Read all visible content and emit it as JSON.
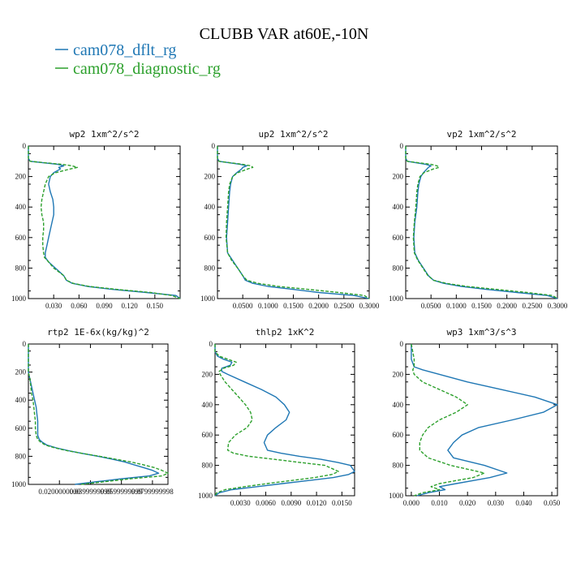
{
  "title": "CLUBB VAR at60E,-10N",
  "legend": [
    {
      "label": "cam078_dflt_rg",
      "color": "#1f77b4"
    },
    {
      "label": "cam078_diagnostic_rg",
      "color": "#2ca02c"
    }
  ],
  "chart_data": [
    {
      "type": "line",
      "title": "wp2  1xm^2/s^2",
      "xlim": [
        0,
        0.18
      ],
      "ylim": [
        1000,
        0
      ],
      "xticks": [
        0.03,
        0.06,
        0.09,
        0.12,
        0.15
      ],
      "xtick_labels": [
        "0.030",
        "0.060",
        "0.090",
        "0.120",
        "0.150"
      ],
      "yticks": [
        0,
        200,
        400,
        600,
        800,
        1000
      ],
      "ytick_labels": [
        "0",
        "200",
        "400",
        "600",
        "800",
        "1000"
      ],
      "y": [
        0,
        80,
        100,
        120,
        130,
        140,
        150,
        175,
        200,
        250,
        300,
        350,
        400,
        450,
        500,
        550,
        600,
        650,
        700,
        730,
        760,
        800,
        850,
        880,
        900,
        920,
        940,
        960,
        980,
        1000
      ],
      "series": [
        {
          "name": "cam078_dflt_rg",
          "color": "#1f77b4",
          "dash": "",
          "x": [
            0,
            0,
            0.002,
            0.035,
            0.042,
            0.036,
            0.038,
            0.03,
            0.026,
            0.024,
            0.026,
            0.029,
            0.03,
            0.03,
            0.028,
            0.026,
            0.024,
            0.022,
            0.02,
            0.02,
            0.024,
            0.032,
            0.042,
            0.045,
            0.052,
            0.07,
            0.1,
            0.14,
            0.175,
            0.18
          ]
        },
        {
          "name": "cam078_diagnostic_rg",
          "color": "#2ca02c",
          "dash": "4,2",
          "x": [
            0,
            0,
            0.002,
            0.04,
            0.052,
            0.058,
            0.05,
            0.032,
            0.024,
            0.02,
            0.018,
            0.016,
            0.015,
            0.016,
            0.018,
            0.018,
            0.017,
            0.017,
            0.018,
            0.019,
            0.024,
            0.03,
            0.042,
            0.045,
            0.053,
            0.072,
            0.105,
            0.145,
            0.17,
            0.18
          ]
        }
      ]
    },
    {
      "type": "line",
      "title": "up2  1xm^2/s^2",
      "xlim": [
        0,
        0.3
      ],
      "ylim": [
        1000,
        0
      ],
      "xticks": [
        0.05,
        0.1,
        0.15,
        0.2,
        0.25,
        0.3
      ],
      "xtick_labels": [
        "0.0500",
        "0.1000",
        "0.1500",
        "0.2000",
        "0.2500",
        "0.3000"
      ],
      "yticks": [
        0,
        200,
        400,
        600,
        800,
        1000
      ],
      "ytick_labels": [
        "0",
        "200",
        "400",
        "600",
        "800",
        "1000"
      ],
      "y": [
        0,
        80,
        100,
        120,
        130,
        140,
        150,
        175,
        200,
        250,
        300,
        400,
        500,
        600,
        700,
        750,
        800,
        850,
        880,
        900,
        920,
        940,
        960,
        980,
        1000
      ],
      "series": [
        {
          "name": "cam078_dflt_rg",
          "color": "#1f77b4",
          "dash": "",
          "x": [
            0,
            0,
            0.003,
            0.045,
            0.058,
            0.05,
            0.048,
            0.038,
            0.03,
            0.026,
            0.024,
            0.022,
            0.02,
            0.018,
            0.02,
            0.03,
            0.04,
            0.05,
            0.055,
            0.07,
            0.1,
            0.15,
            0.2,
            0.27,
            0.3
          ]
        },
        {
          "name": "cam078_diagnostic_rg",
          "color": "#2ca02c",
          "dash": "4,2",
          "x": [
            0,
            0,
            0.003,
            0.05,
            0.066,
            0.07,
            0.06,
            0.04,
            0.03,
            0.024,
            0.022,
            0.02,
            0.018,
            0.017,
            0.02,
            0.028,
            0.04,
            0.05,
            0.058,
            0.08,
            0.12,
            0.18,
            0.24,
            0.29,
            0.3
          ]
        }
      ]
    },
    {
      "type": "line",
      "title": "vp2  1xm^2/s^2",
      "xlim": [
        0,
        0.3
      ],
      "ylim": [
        1000,
        0
      ],
      "xticks": [
        0.05,
        0.1,
        0.15,
        0.2,
        0.25,
        0.3
      ],
      "xtick_labels": [
        "0.0500",
        "0.1000",
        "0.1500",
        "0.2000",
        "0.2500",
        "0.3000"
      ],
      "yticks": [
        0,
        200,
        400,
        600,
        800,
        1000
      ],
      "ytick_labels": [
        "0",
        "200",
        "400",
        "600",
        "800",
        "1000"
      ],
      "y": [
        0,
        80,
        100,
        120,
        130,
        140,
        150,
        175,
        200,
        250,
        300,
        400,
        500,
        600,
        700,
        750,
        800,
        850,
        880,
        900,
        920,
        940,
        960,
        980,
        1000
      ],
      "series": [
        {
          "name": "cam078_dflt_rg",
          "color": "#1f77b4",
          "dash": "",
          "x": [
            0,
            0,
            0.003,
            0.04,
            0.05,
            0.045,
            0.042,
            0.035,
            0.03,
            0.026,
            0.024,
            0.022,
            0.018,
            0.016,
            0.018,
            0.025,
            0.035,
            0.045,
            0.055,
            0.075,
            0.11,
            0.16,
            0.22,
            0.28,
            0.3
          ]
        },
        {
          "name": "cam078_diagnostic_rg",
          "color": "#2ca02c",
          "dash": "4,2",
          "x": [
            0,
            0,
            0.003,
            0.05,
            0.062,
            0.066,
            0.055,
            0.036,
            0.028,
            0.024,
            0.022,
            0.02,
            0.017,
            0.015,
            0.017,
            0.024,
            0.034,
            0.044,
            0.055,
            0.08,
            0.12,
            0.18,
            0.24,
            0.29,
            0.3
          ]
        }
      ]
    },
    {
      "type": "line",
      "title": "rtp2  1E-6x(kg/kg)^2",
      "xlim": [
        0,
        0.09
      ],
      "ylim": [
        1000,
        0
      ],
      "xticks": [
        0.02,
        0.04,
        0.06,
        0.08
      ],
      "xtick_labels": [
        "0.0200000000",
        "0.0399999999",
        "0.0599999999",
        "0.0799999998"
      ],
      "yticks": [
        0,
        200,
        400,
        600,
        800,
        1000
      ],
      "ytick_labels": [
        "0",
        "200",
        "400",
        "600",
        "800",
        "1000"
      ],
      "y": [
        0,
        100,
        200,
        250,
        300,
        350,
        400,
        450,
        500,
        550,
        600,
        650,
        680,
        700,
        720,
        740,
        760,
        780,
        800,
        820,
        840,
        860,
        880,
        900,
        920,
        940,
        960,
        980,
        1000
      ],
      "series": [
        {
          "name": "cam078_dflt_rg",
          "color": "#1f77b4",
          "dash": "",
          "x": [
            0,
            0,
            0,
            0.001,
            0.002,
            0.003,
            0.004,
            0.005,
            0.0055,
            0.006,
            0.006,
            0.006,
            0.007,
            0.009,
            0.012,
            0.018,
            0.026,
            0.035,
            0.045,
            0.054,
            0.062,
            0.068,
            0.074,
            0.08,
            0.084,
            0.078,
            0.06,
            0.045,
            0.03
          ]
        },
        {
          "name": "cam078_diagnostic_rg",
          "color": "#2ca02c",
          "dash": "4,2",
          "x": [
            0,
            0,
            0,
            0.001,
            0.0015,
            0.002,
            0.003,
            0.0035,
            0.004,
            0.0045,
            0.0045,
            0.005,
            0.006,
            0.008,
            0.011,
            0.017,
            0.025,
            0.035,
            0.046,
            0.056,
            0.066,
            0.074,
            0.081,
            0.086,
            0.09,
            0.086,
            0.066,
            0.05,
            0.034
          ]
        }
      ]
    },
    {
      "type": "line",
      "title": "thlp2  1xK^2",
      "xlim": [
        0,
        0.0165
      ],
      "ylim": [
        1000,
        0
      ],
      "xticks": [
        0.003,
        0.006,
        0.009,
        0.012,
        0.015
      ],
      "xtick_labels": [
        "0.0030",
        "0.0060",
        "0.0090",
        "0.0120",
        "0.0150"
      ],
      "yticks": [
        0,
        200,
        400,
        600,
        800,
        1000
      ],
      "ytick_labels": [
        "0",
        "200",
        "400",
        "600",
        "800",
        "1000"
      ],
      "y": [
        0,
        50,
        80,
        100,
        120,
        140,
        160,
        180,
        200,
        250,
        300,
        350,
        400,
        450,
        500,
        550,
        600,
        650,
        700,
        720,
        740,
        760,
        780,
        800,
        840,
        860,
        880,
        900,
        920,
        940,
        960,
        980,
        1000
      ],
      "series": [
        {
          "name": "cam078_dflt_rg",
          "color": "#1f77b4",
          "dash": "",
          "x": [
            0,
            0,
            0.0003,
            0.001,
            0.002,
            0.0018,
            0.0008,
            0.0008,
            0.0015,
            0.0035,
            0.0055,
            0.0072,
            0.0082,
            0.0088,
            0.0084,
            0.0072,
            0.0062,
            0.0058,
            0.0062,
            0.0078,
            0.01,
            0.0125,
            0.0145,
            0.016,
            0.0165,
            0.0158,
            0.014,
            0.011,
            0.008,
            0.005,
            0.002,
            0.0005,
            0
          ]
        },
        {
          "name": "cam078_diagnostic_rg",
          "color": "#2ca02c",
          "dash": "4,2",
          "x": [
            0,
            0,
            0.0005,
            0.0015,
            0.0025,
            0.0022,
            0.001,
            0.0005,
            0.0006,
            0.0012,
            0.002,
            0.0028,
            0.0036,
            0.0042,
            0.0044,
            0.0038,
            0.0024,
            0.0016,
            0.0015,
            0.0022,
            0.004,
            0.007,
            0.01,
            0.013,
            0.0146,
            0.0138,
            0.0118,
            0.009,
            0.0062,
            0.0035,
            0.0012,
            0.0002,
            0
          ]
        }
      ]
    },
    {
      "type": "line",
      "title": "wp3  1xm^3/s^3",
      "xlim": [
        -0.002,
        0.052
      ],
      "ylim": [
        1000,
        0
      ],
      "xticks": [
        0,
        0.01,
        0.02,
        0.03,
        0.04,
        0.05
      ],
      "xtick_labels": [
        "0.000",
        "0.010",
        "0.020",
        "0.030",
        "0.040",
        "0.050"
      ],
      "yticks": [
        0,
        200,
        400,
        600,
        800,
        1000
      ],
      "ytick_labels": [
        "0",
        "200",
        "400",
        "600",
        "800",
        "1000"
      ],
      "y": [
        0,
        100,
        150,
        170,
        200,
        250,
        300,
        350,
        400,
        450,
        500,
        550,
        600,
        650,
        700,
        750,
        800,
        850,
        880,
        900,
        920,
        940,
        960,
        980,
        1000
      ],
      "series": [
        {
          "name": "cam078_dflt_rg",
          "color": "#1f77b4",
          "dash": "",
          "x": [
            0,
            0,
            0.001,
            0.004,
            0.01,
            0.02,
            0.032,
            0.044,
            0.052,
            0.047,
            0.036,
            0.024,
            0.018,
            0.015,
            0.013,
            0.015,
            0.026,
            0.034,
            0.028,
            0.022,
            0.016,
            0.01,
            0.012,
            0.006,
            0.002
          ]
        },
        {
          "name": "cam078_diagnostic_rg",
          "color": "#2ca02c",
          "dash": "4,2",
          "x": [
            0,
            0.001,
            0.001,
            0.0005,
            0.001,
            0.004,
            0.01,
            0.016,
            0.02,
            0.016,
            0.01,
            0.006,
            0.004,
            0.003,
            0.003,
            0.006,
            0.014,
            0.026,
            0.022,
            0.016,
            0.01,
            0.007,
            0.01,
            0.004,
            0.001
          ]
        }
      ]
    }
  ]
}
